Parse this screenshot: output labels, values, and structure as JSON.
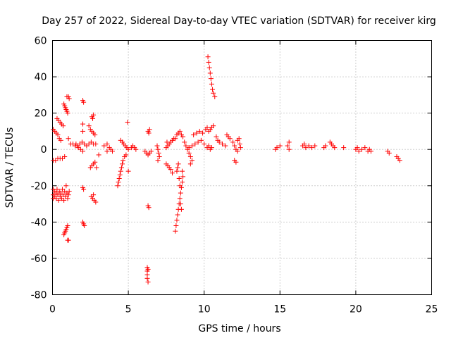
{
  "chart_data": {
    "type": "scatter",
    "title": "Day 257 of 2022, Sidereal Day-to-day VTEC variation (SDTVAR) for receiver kirg",
    "xlabel": "GPS time / hours",
    "ylabel": "SDTVAR / TECUs",
    "xlim": [
      0,
      25
    ],
    "ylim": [
      -80,
      60
    ],
    "xticks": [
      "0",
      "5",
      "10",
      "15",
      "20",
      "25"
    ],
    "yticks": [
      "-80",
      "-60",
      "-40",
      "-20",
      "0",
      "20",
      "40",
      "60"
    ],
    "grid": true,
    "marker": "+",
    "color": "#ff0000",
    "series": [
      {
        "name": "SDTVAR",
        "points": [
          [
            0.05,
            11
          ],
          [
            0.15,
            10
          ],
          [
            0.25,
            9
          ],
          [
            0.35,
            8
          ],
          [
            0.45,
            6
          ],
          [
            0.55,
            5
          ],
          [
            0.05,
            -6
          ],
          [
            0.2,
            -6
          ],
          [
            0.35,
            -5
          ],
          [
            0.5,
            -5
          ],
          [
            0.65,
            -5
          ],
          [
            0.8,
            -4
          ],
          [
            0.05,
            -22
          ],
          [
            0.05,
            -25
          ],
          [
            0.05,
            -27
          ],
          [
            0.15,
            -23
          ],
          [
            0.15,
            -26
          ],
          [
            0.25,
            -24
          ],
          [
            0.25,
            -27
          ],
          [
            0.3,
            -22
          ],
          [
            0.35,
            -25
          ],
          [
            0.4,
            -28
          ],
          [
            0.45,
            -23
          ],
          [
            0.5,
            -26
          ],
          [
            0.55,
            -24
          ],
          [
            0.6,
            -27
          ],
          [
            0.65,
            -22
          ],
          [
            0.7,
            -25
          ],
          [
            0.75,
            -28
          ],
          [
            0.8,
            -23
          ],
          [
            0.85,
            -26
          ],
          [
            0.9,
            -20
          ],
          [
            0.95,
            -24
          ],
          [
            1.0,
            -27
          ],
          [
            1.05,
            -25
          ],
          [
            1.1,
            -23
          ],
          [
            0.3,
            17
          ],
          [
            0.4,
            16
          ],
          [
            0.5,
            15
          ],
          [
            0.6,
            14
          ],
          [
            0.7,
            13
          ],
          [
            0.75,
            25
          ],
          [
            0.8,
            24
          ],
          [
            0.85,
            23
          ],
          [
            0.9,
            22
          ],
          [
            0.95,
            21
          ],
          [
            1.0,
            20
          ],
          [
            0.95,
            29
          ],
          [
            1.05,
            29
          ],
          [
            1.1,
            28
          ],
          [
            0.75,
            -47
          ],
          [
            0.8,
            -46
          ],
          [
            0.85,
            -45
          ],
          [
            0.9,
            -44
          ],
          [
            0.95,
            -43
          ],
          [
            1.0,
            -42
          ],
          [
            1.0,
            -50
          ],
          [
            1.05,
            -50
          ],
          [
            1.05,
            6
          ],
          [
            1.2,
            3
          ],
          [
            1.35,
            3
          ],
          [
            1.5,
            2
          ],
          [
            1.65,
            2
          ],
          [
            1.8,
            3
          ],
          [
            1.95,
            4
          ],
          [
            2.1,
            3
          ],
          [
            2.25,
            2
          ],
          [
            2.4,
            3
          ],
          [
            2.55,
            4
          ],
          [
            2.7,
            3
          ],
          [
            2.85,
            3
          ],
          [
            1.55,
            3
          ],
          [
            1.7,
            1
          ],
          [
            1.85,
            0
          ],
          [
            2.0,
            -1
          ],
          [
            2.0,
            14
          ],
          [
            2.0,
            10
          ],
          [
            2.0,
            27
          ],
          [
            2.05,
            26
          ],
          [
            2.0,
            -21
          ],
          [
            2.05,
            -22
          ],
          [
            2.0,
            -40
          ],
          [
            2.05,
            -41
          ],
          [
            2.1,
            -42
          ],
          [
            2.4,
            13
          ],
          [
            2.5,
            11
          ],
          [
            2.6,
            10
          ],
          [
            2.7,
            9
          ],
          [
            2.8,
            8
          ],
          [
            2.6,
            18
          ],
          [
            2.7,
            19
          ],
          [
            2.65,
            17
          ],
          [
            2.5,
            -10
          ],
          [
            2.6,
            -9
          ],
          [
            2.7,
            -8
          ],
          [
            2.8,
            -7
          ],
          [
            2.9,
            -10
          ],
          [
            2.55,
            -26
          ],
          [
            2.65,
            -27
          ],
          [
            2.75,
            -28
          ],
          [
            2.85,
            -29
          ],
          [
            2.7,
            -25
          ],
          [
            3.05,
            -3
          ],
          [
            3.4,
            2
          ],
          [
            3.6,
            3
          ],
          [
            3.75,
            1
          ],
          [
            3.85,
            0
          ],
          [
            3.95,
            -1
          ],
          [
            3.6,
            -1
          ],
          [
            4.3,
            -20
          ],
          [
            4.35,
            -18
          ],
          [
            4.4,
            -16
          ],
          [
            4.45,
            -14
          ],
          [
            4.5,
            -12
          ],
          [
            4.55,
            -10
          ],
          [
            4.6,
            -8
          ],
          [
            4.65,
            -6
          ],
          [
            4.5,
            5
          ],
          [
            4.6,
            4
          ],
          [
            4.7,
            3
          ],
          [
            4.8,
            2
          ],
          [
            4.9,
            1
          ],
          [
            5.0,
            0
          ],
          [
            5.0,
            -12
          ],
          [
            5.2,
            1
          ],
          [
            5.3,
            2
          ],
          [
            5.4,
            1
          ],
          [
            5.5,
            0
          ],
          [
            4.75,
            -4
          ],
          [
            4.85,
            -3
          ],
          [
            4.95,
            15
          ],
          [
            6.1,
            -1
          ],
          [
            6.2,
            -2
          ],
          [
            6.3,
            -3
          ],
          [
            6.4,
            -2
          ],
          [
            6.5,
            -1
          ],
          [
            6.3,
            10
          ],
          [
            6.35,
            9
          ],
          [
            6.4,
            11
          ],
          [
            6.3,
            -31
          ],
          [
            6.35,
            -32
          ],
          [
            6.25,
            -65
          ],
          [
            6.25,
            -67
          ],
          [
            6.25,
            -69
          ],
          [
            6.25,
            -71
          ],
          [
            6.3,
            -73
          ],
          [
            6.3,
            -66
          ],
          [
            6.9,
            2
          ],
          [
            6.95,
            0
          ],
          [
            7.0,
            -2
          ],
          [
            7.05,
            -4
          ],
          [
            6.95,
            -6
          ],
          [
            7.5,
            -8
          ],
          [
            7.6,
            -9
          ],
          [
            7.7,
            -10
          ],
          [
            7.8,
            -11
          ],
          [
            7.9,
            -13
          ],
          [
            7.5,
            1
          ],
          [
            7.6,
            2
          ],
          [
            7.7,
            3
          ],
          [
            7.8,
            4
          ],
          [
            7.9,
            5
          ],
          [
            8.0,
            6
          ],
          [
            7.55,
            4
          ],
          [
            8.1,
            -45
          ],
          [
            8.15,
            -42
          ],
          [
            8.2,
            -39
          ],
          [
            8.25,
            -36
          ],
          [
            8.3,
            -33
          ],
          [
            8.35,
            -30
          ],
          [
            8.4,
            -27
          ],
          [
            8.45,
            -24
          ],
          [
            8.5,
            -21
          ],
          [
            8.55,
            -18
          ],
          [
            8.6,
            -15
          ],
          [
            8.2,
            -12
          ],
          [
            8.25,
            -10
          ],
          [
            8.3,
            -8
          ],
          [
            8.35,
            -16
          ],
          [
            8.4,
            -20
          ],
          [
            8.45,
            -30
          ],
          [
            8.5,
            -33
          ],
          [
            8.55,
            -12
          ],
          [
            8.1,
            6
          ],
          [
            8.2,
            8
          ],
          [
            8.3,
            9
          ],
          [
            8.4,
            10
          ],
          [
            8.5,
            8
          ],
          [
            8.6,
            7
          ],
          [
            8.7,
            4
          ],
          [
            8.8,
            2
          ],
          [
            8.9,
            0
          ],
          [
            9.0,
            -2
          ],
          [
            9.1,
            -4
          ],
          [
            9.2,
            -6
          ],
          [
            9.1,
            -8
          ],
          [
            9.3,
            8
          ],
          [
            9.5,
            9
          ],
          [
            9.7,
            10
          ],
          [
            9.9,
            9
          ],
          [
            9.0,
            1
          ],
          [
            9.2,
            2
          ],
          [
            9.4,
            3
          ],
          [
            9.6,
            4
          ],
          [
            9.8,
            5
          ],
          [
            10.0,
            3
          ],
          [
            10.2,
            1
          ],
          [
            10.4,
            0
          ],
          [
            10.1,
            11
          ],
          [
            10.2,
            12
          ],
          [
            10.3,
            10
          ],
          [
            10.4,
            11
          ],
          [
            10.5,
            12
          ],
          [
            10.6,
            13
          ],
          [
            10.3,
            2
          ],
          [
            10.5,
            1
          ],
          [
            10.25,
            51
          ],
          [
            10.3,
            48
          ],
          [
            10.35,
            45
          ],
          [
            10.4,
            42
          ],
          [
            10.45,
            39
          ],
          [
            10.5,
            36
          ],
          [
            10.55,
            33
          ],
          [
            10.6,
            31
          ],
          [
            10.7,
            29
          ],
          [
            10.8,
            7
          ],
          [
            10.9,
            5
          ],
          [
            11.0,
            4
          ],
          [
            11.2,
            3
          ],
          [
            11.4,
            2
          ],
          [
            11.5,
            8
          ],
          [
            11.6,
            7
          ],
          [
            11.7,
            6
          ],
          [
            11.9,
            4
          ],
          [
            12.0,
            2
          ],
          [
            12.1,
            0
          ],
          [
            12.2,
            -1
          ],
          [
            12.0,
            -6
          ],
          [
            12.1,
            -7
          ],
          [
            12.2,
            5
          ],
          [
            12.3,
            6
          ],
          [
            12.35,
            3
          ],
          [
            12.4,
            1
          ],
          [
            14.7,
            0
          ],
          [
            14.8,
            1
          ],
          [
            15.0,
            2
          ],
          [
            15.5,
            2
          ],
          [
            15.6,
            4
          ],
          [
            15.6,
            0
          ],
          [
            16.5,
            2
          ],
          [
            16.6,
            3
          ],
          [
            16.7,
            1
          ],
          [
            16.9,
            2
          ],
          [
            17.1,
            1
          ],
          [
            17.3,
            2
          ],
          [
            17.9,
            1
          ],
          [
            18.0,
            2
          ],
          [
            18.3,
            4
          ],
          [
            18.4,
            3
          ],
          [
            18.5,
            2
          ],
          [
            18.6,
            1
          ],
          [
            19.2,
            1
          ],
          [
            20.0,
            0
          ],
          [
            20.1,
            1
          ],
          [
            20.2,
            -1
          ],
          [
            20.4,
            0
          ],
          [
            20.6,
            1
          ],
          [
            20.8,
            -1
          ],
          [
            20.9,
            0
          ],
          [
            21.0,
            -1
          ],
          [
            22.1,
            -1
          ],
          [
            22.2,
            -2
          ],
          [
            22.7,
            -4
          ],
          [
            22.8,
            -5
          ],
          [
            22.9,
            -6
          ]
        ]
      }
    ]
  }
}
